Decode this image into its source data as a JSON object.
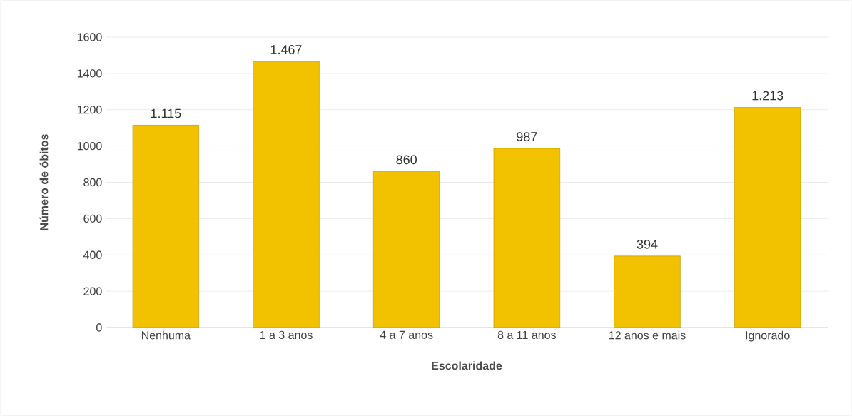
{
  "chart_data": {
    "type": "bar",
    "xlabel": "Escolaridade",
    "ylabel": "Número de óbitos",
    "categories": [
      "Nenhuma",
      "1 a 3 anos",
      "4 a 7 anos",
      "8 a 11 anos",
      "12 anos e mais",
      "Ignorado"
    ],
    "values": [
      1115,
      1467,
      860,
      987,
      394,
      1213
    ],
    "value_labels": [
      "1.115",
      "1.467",
      "860",
      "987",
      "394",
      "1.213"
    ],
    "color": "#f2c200",
    "ylim": [
      0,
      1600
    ],
    "yticks": [
      0,
      200,
      400,
      600,
      800,
      1000,
      1200,
      1400,
      1600
    ],
    "grid": "y"
  }
}
